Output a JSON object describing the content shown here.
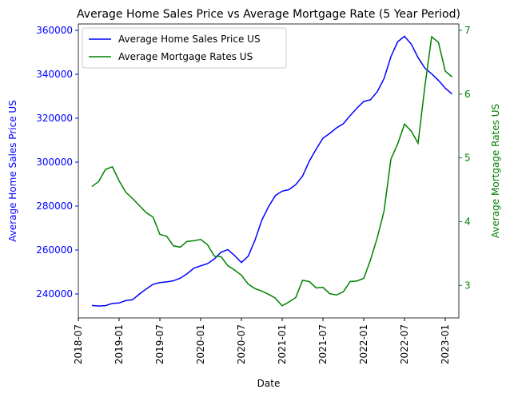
{
  "chart_data": {
    "type": "line",
    "title": "Average Home Sales Price vs Average Mortgage Rate (5 Year Period)",
    "xlabel": "Date",
    "ylabel": "Average Home Sales Price US",
    "y2label": "Average Mortgage Rates US",
    "x": [
      "2018-09",
      "2018-10",
      "2018-11",
      "2018-12",
      "2019-01",
      "2019-02",
      "2019-03",
      "2019-04",
      "2019-05",
      "2019-06",
      "2019-07",
      "2019-08",
      "2019-09",
      "2019-10",
      "2019-11",
      "2019-12",
      "2020-01",
      "2020-02",
      "2020-03",
      "2020-04",
      "2020-05",
      "2020-06",
      "2020-07",
      "2020-08",
      "2020-09",
      "2020-10",
      "2020-11",
      "2020-12",
      "2021-01",
      "2021-02",
      "2021-03",
      "2021-04",
      "2021-05",
      "2021-06",
      "2021-07",
      "2021-08",
      "2021-09",
      "2021-10",
      "2021-11",
      "2021-12",
      "2022-01",
      "2022-02",
      "2022-03",
      "2022-04",
      "2022-05",
      "2022-06",
      "2022-07",
      "2022-08",
      "2022-09",
      "2022-10",
      "2022-11",
      "2022-12",
      "2023-01",
      "2023-02"
    ],
    "series": [
      {
        "name": "Average Home Sales Price US",
        "color": "#0000ff",
        "axis": "y",
        "values": [
          234800,
          234500,
          234700,
          235700,
          235900,
          237000,
          237400,
          240000,
          242300,
          244400,
          245200,
          245500,
          246000,
          247200,
          249200,
          251700,
          252800,
          253800,
          255900,
          259000,
          260200,
          257500,
          254300,
          257200,
          264500,
          273600,
          279800,
          284800,
          286800,
          287500,
          289800,
          293700,
          300500,
          305900,
          310900,
          313100,
          315600,
          317500,
          321200,
          324600,
          327600,
          328400,
          332100,
          338100,
          348000,
          354800,
          357300,
          353700,
          347600,
          342800,
          340200,
          337200,
          333700,
          331000
        ]
      },
      {
        "name": "Average Mortgage Rates US",
        "color": "#008000",
        "axis": "y2",
        "values": [
          4.55,
          4.63,
          4.82,
          4.86,
          4.64,
          4.46,
          4.36,
          4.25,
          4.14,
          4.07,
          3.8,
          3.77,
          3.62,
          3.6,
          3.69,
          3.7,
          3.72,
          3.64,
          3.46,
          3.45,
          3.31,
          3.24,
          3.16,
          3.02,
          2.95,
          2.91,
          2.86,
          2.8,
          2.68,
          2.74,
          2.81,
          3.08,
          3.06,
          2.96,
          2.97,
          2.87,
          2.85,
          2.9,
          3.06,
          3.07,
          3.11,
          3.4,
          3.75,
          4.17,
          4.98,
          5.22,
          5.53,
          5.42,
          5.23,
          6.12,
          6.9,
          6.81,
          6.36,
          6.27
        ]
      }
    ],
    "xlim": [
      "2018-07",
      "2023-03"
    ],
    "xticks": [
      "2018-07",
      "2019-01",
      "2019-07",
      "2020-01",
      "2020-07",
      "2021-01",
      "2021-07",
      "2022-01",
      "2022-07",
      "2023-01"
    ],
    "ylim": [
      229100,
      362900
    ],
    "yticks": [
      240000,
      260000,
      280000,
      300000,
      320000,
      340000,
      360000
    ],
    "y2lim": [
      2.49,
      7.1
    ],
    "y2ticks": [
      3,
      4,
      5,
      6,
      7
    ],
    "legend": "upper left"
  }
}
